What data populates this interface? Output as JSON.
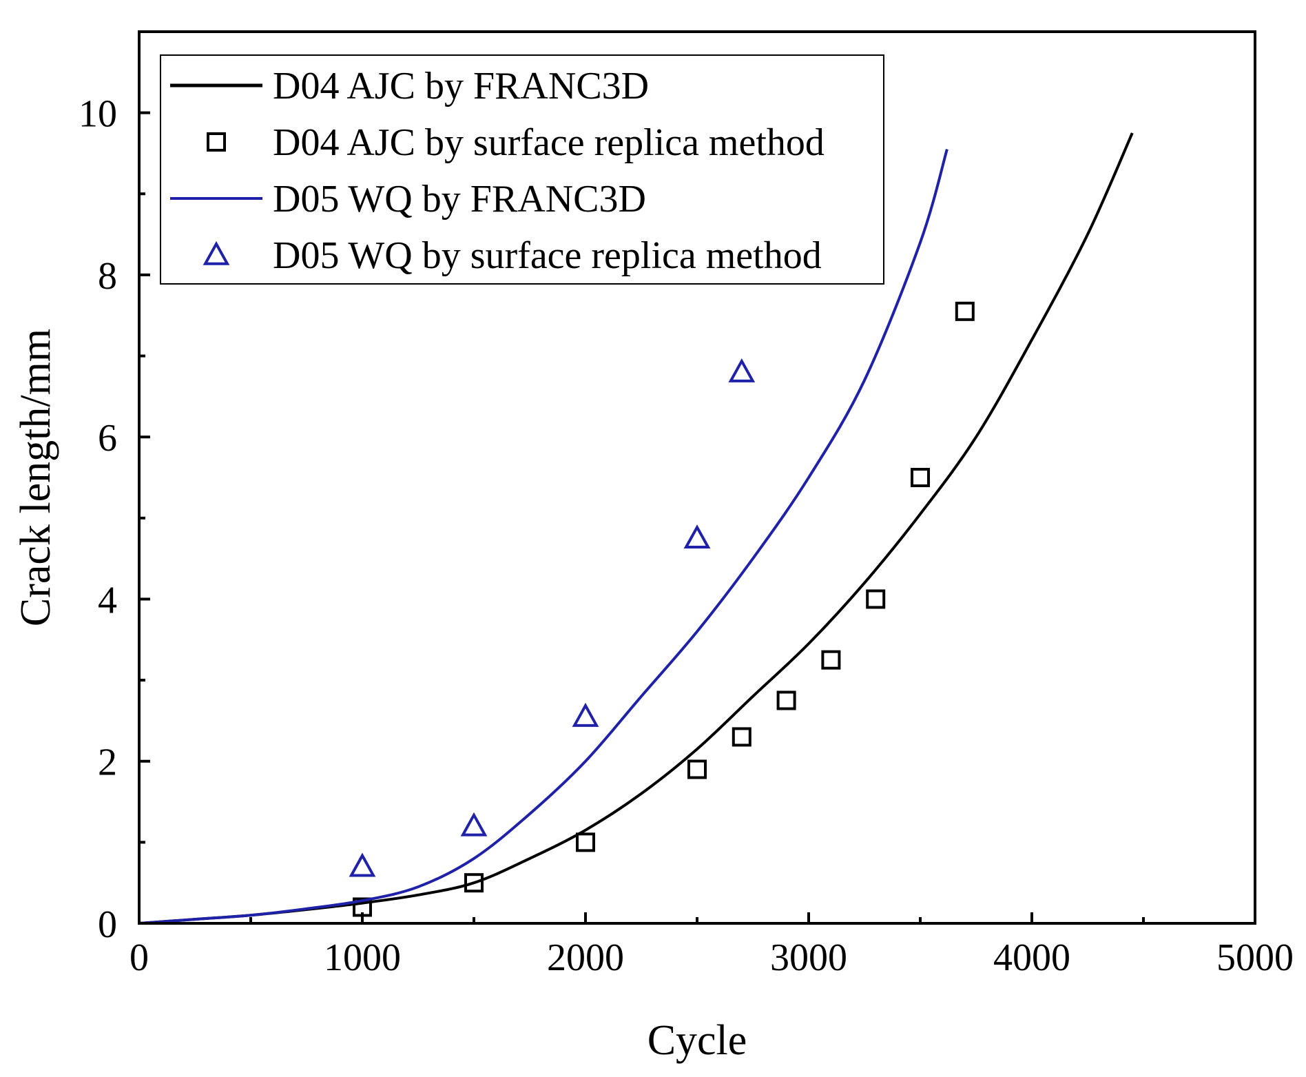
{
  "chart_data": {
    "type": "line",
    "title": "",
    "xlabel": "Cycle",
    "ylabel": "Crack length/mm",
    "xlim": [
      0,
      5000
    ],
    "ylim": [
      0,
      11
    ],
    "xticks": [
      0,
      1000,
      2000,
      3000,
      4000,
      5000
    ],
    "xtick_labels": [
      "0",
      "1000",
      "2000",
      "3000",
      "4000",
      "5000"
    ],
    "yticks": [
      0,
      2,
      4,
      6,
      8,
      10
    ],
    "ytick_labels": [
      "0",
      "2",
      "4",
      "6",
      "8",
      "10"
    ],
    "grid": false,
    "legend_position": "top-left",
    "series": [
      {
        "name": "D04 AJC by FRANC3D",
        "kind": "line",
        "color": "#000000",
        "x": [
          0,
          250,
          500,
          750,
          1000,
          1250,
          1500,
          1750,
          2000,
          2250,
          2500,
          2750,
          3000,
          3250,
          3500,
          3750,
          4000,
          4250,
          4450
        ],
        "y": [
          0,
          0.05,
          0.1,
          0.17,
          0.25,
          0.35,
          0.5,
          0.8,
          1.15,
          1.6,
          2.15,
          2.8,
          3.45,
          4.2,
          5.05,
          6.0,
          7.2,
          8.5,
          9.75
        ]
      },
      {
        "name": "D04 AJC by surface replica method",
        "kind": "scatter",
        "marker": "square",
        "color": "#000000",
        "x": [
          1000,
          1500,
          2000,
          2500,
          2700,
          2900,
          3100,
          3300,
          3500,
          3700
        ],
        "y": [
          0.2,
          0.5,
          1.0,
          1.9,
          2.3,
          2.75,
          3.25,
          4.0,
          5.5,
          7.55
        ]
      },
      {
        "name": "D05 WQ by FRANC3D",
        "kind": "line",
        "color": "#1f22a8",
        "x": [
          0,
          250,
          500,
          750,
          1000,
          1250,
          1500,
          1750,
          2000,
          2250,
          2500,
          2750,
          3000,
          3250,
          3500,
          3620
        ],
        "y": [
          0,
          0.05,
          0.1,
          0.18,
          0.28,
          0.45,
          0.8,
          1.35,
          2.0,
          2.8,
          3.6,
          4.5,
          5.5,
          6.7,
          8.4,
          9.55
        ]
      },
      {
        "name": "D05 WQ by surface replica method",
        "kind": "scatter",
        "marker": "triangle",
        "color": "#1f22a8",
        "x": [
          1000,
          1500,
          2000,
          2500,
          2700
        ],
        "y": [
          0.7,
          1.2,
          2.55,
          4.75,
          6.8
        ]
      }
    ]
  }
}
